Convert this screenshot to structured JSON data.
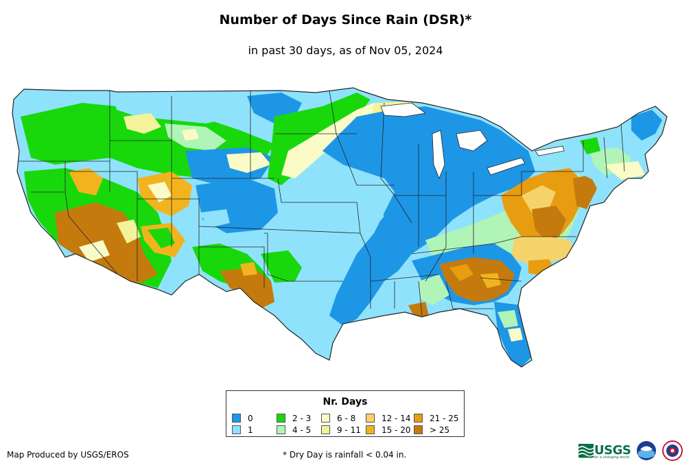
{
  "title": "Number of Days Since Rain (DSR)*",
  "subtitle": "in past 30 days, as of Nov 05, 2024",
  "legend": {
    "title": "Nr. Days",
    "items": [
      {
        "label": "0",
        "color": "#1e96e6"
      },
      {
        "label": "2 - 3",
        "color": "#18d80c"
      },
      {
        "label": "6 - 8",
        "color": "#fbfbc8"
      },
      {
        "label": "12 - 14",
        "color": "#f6d26a"
      },
      {
        "label": "21 - 25",
        "color": "#e89c10"
      },
      {
        "label": "1",
        "color": "#8fe2fb"
      },
      {
        "label": "4 - 5",
        "color": "#b0f4b8"
      },
      {
        "label": "9 - 11",
        "color": "#f4f29a"
      },
      {
        "label": "15 - 20",
        "color": "#f2b41e"
      },
      {
        "label": "> 25",
        "color": "#c57a0e"
      }
    ]
  },
  "credit": "Map Produced by USGS/EROS",
  "footnote": "* Dry Day is rainfall < 0.04 in.",
  "logos": {
    "usgs_text": "USGS",
    "usgs_tagline": "science for a changing world",
    "noaa_icon": "noaa-seal-icon",
    "nws_icon": "national-weather-service-seal-icon"
  }
}
